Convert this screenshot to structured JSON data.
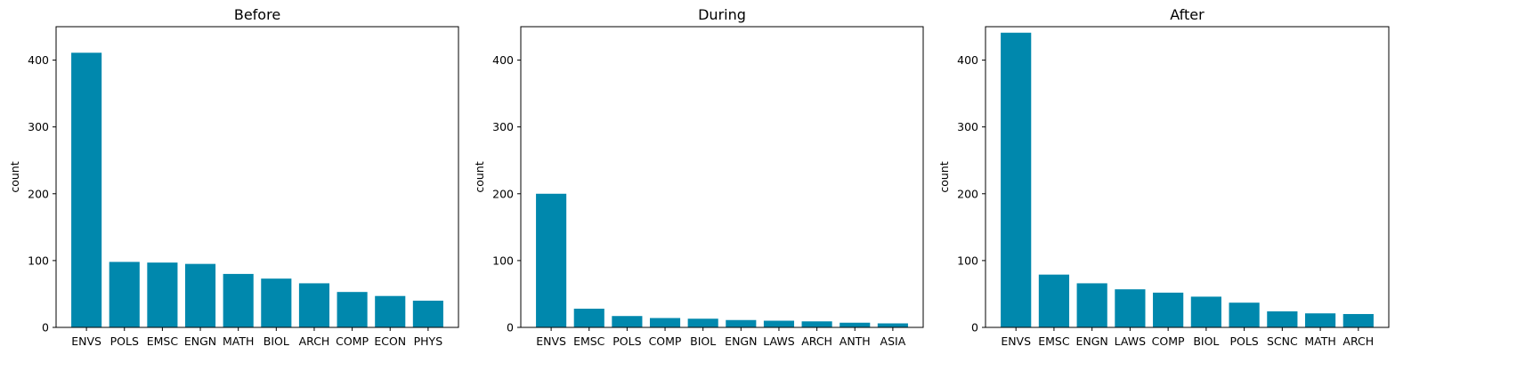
{
  "chart_data": [
    {
      "type": "bar",
      "title": "Before",
      "xlabel": "",
      "ylabel": "count",
      "ylim": [
        0,
        450
      ],
      "yticks": [
        0,
        100,
        200,
        300,
        400
      ],
      "categories": [
        "ENVS",
        "POLS",
        "EMSC",
        "ENGN",
        "MATH",
        "BIOL",
        "ARCH",
        "COMP",
        "ECON",
        "PHYS"
      ],
      "values": [
        411,
        98,
        97,
        95,
        80,
        73,
        66,
        53,
        47,
        40
      ],
      "color": "#0088ad",
      "grid": false
    },
    {
      "type": "bar",
      "title": "During",
      "xlabel": "",
      "ylabel": "count",
      "ylim": [
        0,
        450
      ],
      "yticks": [
        0,
        100,
        200,
        300,
        400
      ],
      "categories": [
        "ENVS",
        "EMSC",
        "POLS",
        "COMP",
        "BIOL",
        "ENGN",
        "LAWS",
        "ARCH",
        "ANTH",
        "ASIA"
      ],
      "values": [
        200,
        28,
        17,
        14,
        13,
        11,
        10,
        9,
        7,
        6
      ],
      "color": "#0088ad",
      "grid": false
    },
    {
      "type": "bar",
      "title": "After",
      "xlabel": "",
      "ylabel": "count",
      "ylim": [
        0,
        450
      ],
      "yticks": [
        0,
        100,
        200,
        300,
        400
      ],
      "categories": [
        "ENVS",
        "EMSC",
        "ENGN",
        "LAWS",
        "COMP",
        "BIOL",
        "POLS",
        "SCNC",
        "MATH",
        "ARCH"
      ],
      "values": [
        441,
        79,
        66,
        57,
        52,
        46,
        37,
        24,
        21,
        20
      ],
      "color": "#0088ad",
      "grid": false
    }
  ]
}
